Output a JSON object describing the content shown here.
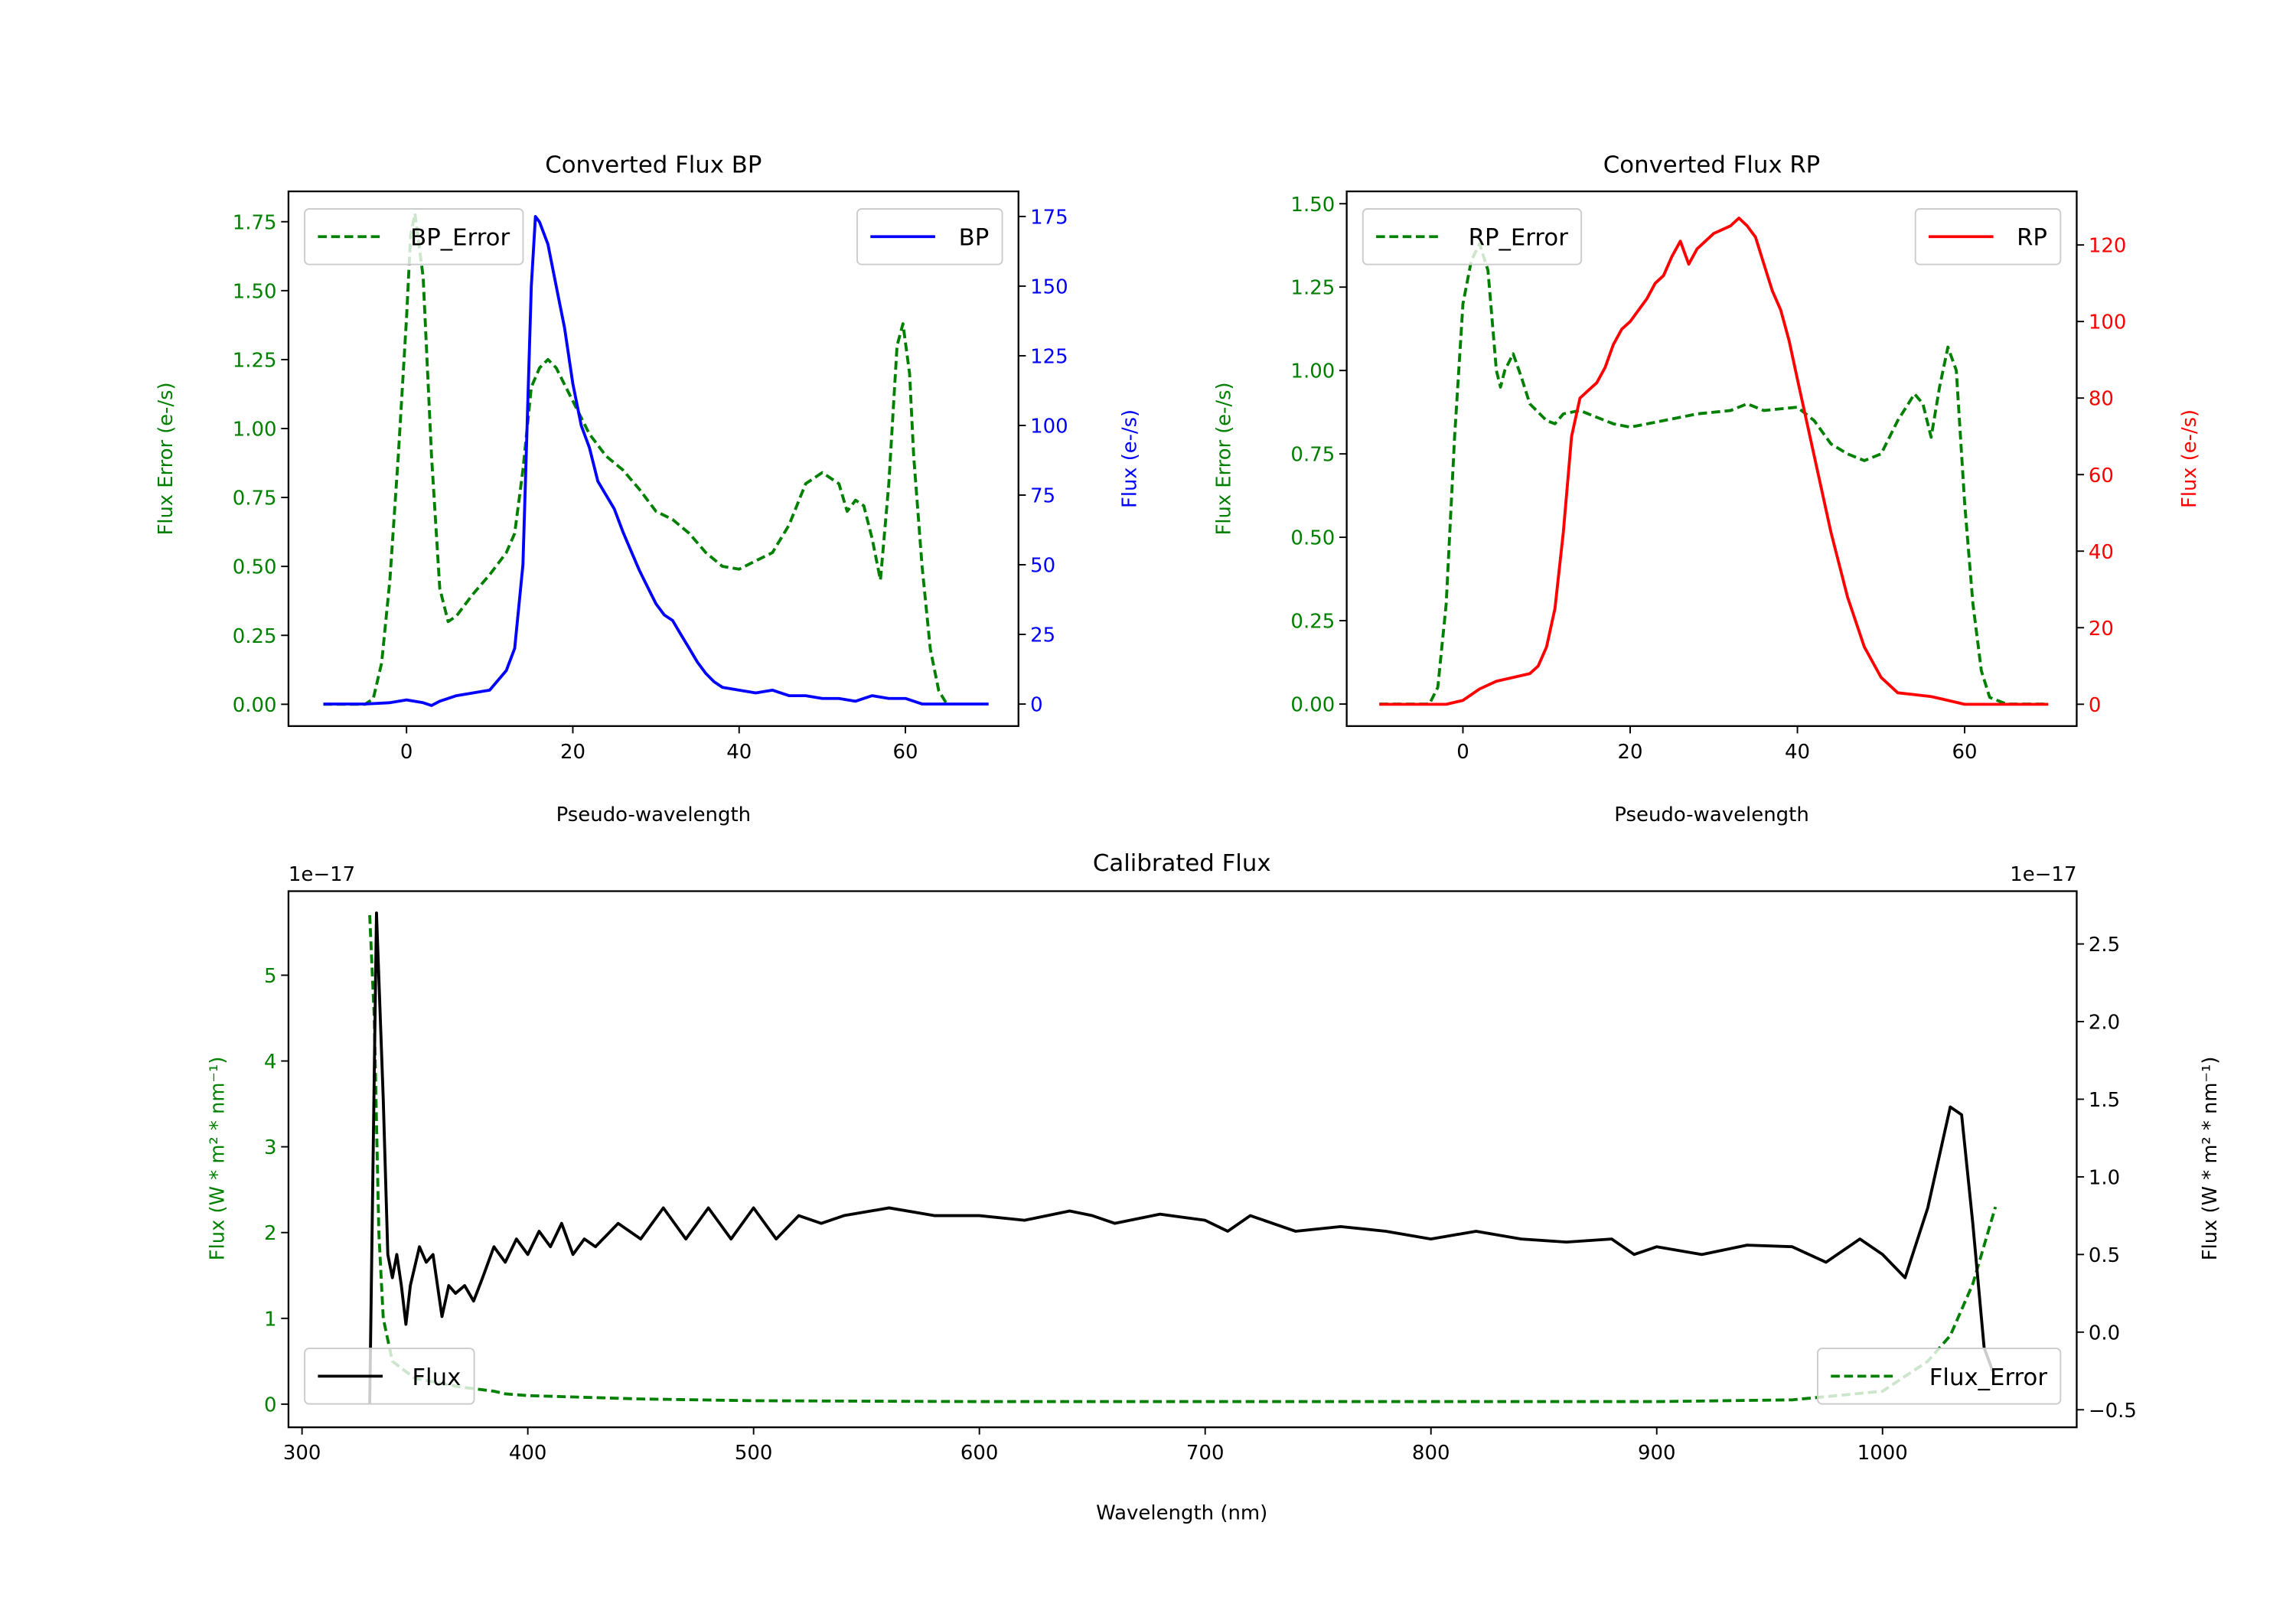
{
  "colors": {
    "error": "#008000",
    "bp": "#0000ff",
    "rp": "#ff0000",
    "flux": "#000000"
  },
  "chart_data": [
    {
      "type": "line",
      "id": "bp",
      "title": "Converted Flux BP",
      "xlabel": "Pseudo-wavelength",
      "ylabel_left": "Flux Error (e-/s)",
      "ylabel_right": "Flux (e-/s)",
      "xlim": [
        -14.2,
        73.6
      ],
      "ylim_left": [
        -0.079,
        1.86
      ],
      "ylim_right": [
        -7.9,
        184
      ],
      "xticks": [
        0,
        20,
        40,
        60
      ],
      "xtick_labels": [
        "0",
        "20",
        "40",
        "60"
      ],
      "yticks_left": [
        0,
        0.25,
        0.5,
        0.75,
        1,
        1.25,
        1.5,
        1.75
      ],
      "ytick_labels_left": [
        "0.00",
        "0.25",
        "0.50",
        "0.75",
        "1.00",
        "1.25",
        "1.50",
        "1.75"
      ],
      "yticks_right": [
        0,
        25,
        50,
        75,
        100,
        125,
        150,
        175
      ],
      "ytick_labels_right": [
        "0",
        "25",
        "50",
        "75",
        "100",
        "125",
        "150",
        "175"
      ],
      "legend_left": {
        "label": "BP_Error",
        "placement": "upper left"
      },
      "legend_right": {
        "label": "BP",
        "placement": "upper right"
      },
      "series": [
        {
          "name": "BP_Error",
          "axis": "left",
          "style": "dashed",
          "color": "#008000",
          "x": [
            -10,
            -5,
            -4,
            -3,
            -2,
            -1,
            0,
            0.5,
            1,
            2,
            3,
            4,
            5,
            6,
            8,
            10,
            12,
            13,
            14,
            15,
            16,
            17,
            18,
            20,
            22,
            24,
            26,
            28,
            30,
            32,
            34,
            36,
            38,
            40,
            42,
            44,
            46,
            48,
            50,
            52,
            53,
            54,
            55,
            56,
            57,
            58,
            59,
            59.7,
            60.5,
            61,
            62,
            63,
            64,
            65
          ],
          "y": [
            0,
            0,
            0.02,
            0.15,
            0.45,
            0.9,
            1.4,
            1.7,
            1.78,
            1.55,
            0.9,
            0.42,
            0.3,
            0.32,
            0.4,
            0.47,
            0.55,
            0.62,
            0.85,
            1.15,
            1.22,
            1.25,
            1.22,
            1.1,
            0.98,
            0.9,
            0.85,
            0.78,
            0.7,
            0.67,
            0.62,
            0.55,
            0.5,
            0.49,
            0.52,
            0.55,
            0.65,
            0.8,
            0.84,
            0.8,
            0.7,
            0.74,
            0.72,
            0.6,
            0.45,
            0.8,
            1.3,
            1.38,
            1.2,
            0.9,
            0.5,
            0.2,
            0.05,
            0
          ]
        },
        {
          "name": "BP",
          "axis": "right",
          "style": "solid",
          "color": "#0000ff",
          "x": [
            -10,
            -5,
            -2,
            0,
            2,
            3,
            4,
            5,
            6,
            8,
            10,
            12,
            13,
            14,
            15,
            15.5,
            16,
            17,
            18,
            19,
            20,
            21,
            22,
            23,
            24,
            25,
            26,
            27,
            28,
            29,
            30,
            31,
            32,
            33,
            34,
            35,
            36,
            37,
            38,
            40,
            42,
            44,
            46,
            48,
            50,
            52,
            54,
            56,
            58,
            60,
            62,
            65,
            70
          ],
          "y": [
            0,
            0,
            0.5,
            1.5,
            0.5,
            -0.5,
            1,
            2,
            3,
            4,
            5,
            12,
            20,
            50,
            150,
            175,
            173,
            165,
            150,
            135,
            115,
            100,
            92,
            80,
            75,
            70,
            62,
            55,
            48,
            42,
            36,
            32,
            30,
            25,
            20,
            15,
            11,
            8,
            6,
            5,
            4,
            5,
            3,
            3,
            2,
            2,
            1,
            3,
            2,
            2,
            0,
            0,
            0
          ]
        }
      ]
    },
    {
      "type": "line",
      "id": "rp",
      "title": "Converted Flux RP",
      "xlabel": "Pseudo-wavelength",
      "ylabel_left": "Flux Error (e-/s)",
      "ylabel_right": "Flux (e-/s)",
      "xlim": [
        -13.9,
        73.4
      ],
      "ylim_left": [
        -0.066,
        1.537
      ],
      "ylim_right": [
        -5.7,
        134
      ],
      "xticks": [
        0,
        20,
        40,
        60
      ],
      "xtick_labels": [
        "0",
        "20",
        "40",
        "60"
      ],
      "yticks_left": [
        0,
        0.25,
        0.5,
        0.75,
        1,
        1.25,
        1.5
      ],
      "ytick_labels_left": [
        "0.00",
        "0.25",
        "0.50",
        "0.75",
        "1.00",
        "1.25",
        "1.50"
      ],
      "yticks_right": [
        0,
        20,
        40,
        60,
        80,
        100,
        120
      ],
      "ytick_labels_right": [
        "0",
        "20",
        "40",
        "60",
        "80",
        "100",
        "120"
      ],
      "legend_left": {
        "label": "RP_Error",
        "placement": "upper left"
      },
      "legend_right": {
        "label": "RP",
        "placement": "upper right"
      },
      "series": [
        {
          "name": "RP_Error",
          "axis": "left",
          "style": "dashed",
          "color": "#008000",
          "x": [
            -10,
            -4,
            -3,
            -2,
            -1,
            0,
            1,
            2,
            3,
            4,
            4.5,
            5,
            6,
            7,
            8,
            10,
            11,
            12,
            14,
            16,
            18,
            20,
            24,
            28,
            32,
            34,
            36,
            40,
            42,
            44,
            46,
            48,
            50,
            52,
            54,
            55,
            56,
            57,
            58,
            59,
            60,
            61,
            62,
            63,
            65,
            70
          ],
          "y": [
            0,
            0,
            0.05,
            0.3,
            0.8,
            1.2,
            1.33,
            1.38,
            1.3,
            1.0,
            0.95,
            1.0,
            1.05,
            0.98,
            0.9,
            0.85,
            0.84,
            0.87,
            0.88,
            0.86,
            0.84,
            0.83,
            0.85,
            0.87,
            0.88,
            0.9,
            0.88,
            0.89,
            0.85,
            0.78,
            0.75,
            0.73,
            0.75,
            0.85,
            0.93,
            0.9,
            0.8,
            0.95,
            1.07,
            1.0,
            0.6,
            0.3,
            0.1,
            0.02,
            0,
            0
          ]
        },
        {
          "name": "RP",
          "axis": "right",
          "style": "solid",
          "color": "#ff0000",
          "x": [
            -10,
            -2,
            0,
            2,
            4,
            6,
            8,
            9,
            10,
            11,
            12,
            13,
            14,
            15,
            16,
            17,
            18,
            19,
            20,
            22,
            23,
            24,
            25,
            26,
            27,
            28,
            30,
            31,
            32,
            33,
            34,
            35,
            36,
            37,
            38,
            39,
            40,
            42,
            44,
            46,
            48,
            50,
            52,
            54,
            56,
            58,
            60,
            65,
            70
          ],
          "y": [
            0,
            0,
            1,
            4,
            6,
            7,
            8,
            10,
            15,
            25,
            45,
            70,
            80,
            82,
            84,
            88,
            94,
            98,
            100,
            106,
            110,
            112,
            117,
            121,
            115,
            119,
            123,
            124,
            125,
            127,
            125,
            122,
            115,
            108,
            103,
            95,
            85,
            65,
            45,
            28,
            15,
            7,
            3,
            2.5,
            2,
            1,
            0,
            0,
            0
          ]
        }
      ]
    },
    {
      "type": "line",
      "id": "cal",
      "title": "Calibrated Flux",
      "xlabel": "Wavelength (nm)",
      "ylabel_left": "Flux (W * m² * nm⁻¹)",
      "ylabel_right": "Flux (W * m² * nm⁻¹)",
      "offset_left": "1e−17",
      "offset_right": "1e−17",
      "xlim": [
        294,
        1086
      ],
      "ylim_left": [
        -0.27,
        5.98
      ],
      "ylim_right": [
        -0.613,
        2.84
      ],
      "xticks": [
        300,
        400,
        500,
        600,
        700,
        800,
        900,
        1000
      ],
      "xtick_labels": [
        "300",
        "400",
        "500",
        "600",
        "700",
        "800",
        "900",
        "1000"
      ],
      "yticks_left": [
        0,
        1,
        2,
        3,
        4,
        5
      ],
      "ytick_labels_left": [
        "0",
        "1",
        "2",
        "3",
        "4",
        "5"
      ],
      "yticks_right": [
        -0.5,
        0,
        0.5,
        1,
        1.5,
        2,
        2.5
      ],
      "ytick_labels_right": [
        "−0.5",
        "0.0",
        "0.5",
        "1.0",
        "1.5",
        "2.0",
        "2.5"
      ],
      "legend_left": {
        "label": "Flux",
        "placement": "lower left"
      },
      "legend_right": {
        "label": "Flux_Error",
        "placement": "lower right"
      },
      "series": [
        {
          "name": "Flux_Error",
          "axis": "left",
          "style": "dashed",
          "color": "#008000",
          "x": [
            330,
            332,
            334,
            336,
            340,
            350,
            370,
            385,
            390,
            400,
            450,
            500,
            600,
            640,
            700,
            800,
            900,
            960,
            1000,
            1020,
            1030,
            1040,
            1050
          ],
          "y": [
            5.7,
            4.5,
            2,
            1,
            0.5,
            0.3,
            0.2,
            0.15,
            0.12,
            0.1,
            0.06,
            0.04,
            0.03,
            0.03,
            0.03,
            0.03,
            0.03,
            0.05,
            0.15,
            0.5,
            0.8,
            1.4,
            2.3
          ]
        },
        {
          "name": "Flux",
          "axis": "right",
          "style": "solid",
          "color": "#000000",
          "x": [
            330,
            333,
            336,
            338,
            340,
            342,
            344,
            346,
            348,
            352,
            355,
            358,
            362,
            365,
            368,
            372,
            376,
            380,
            385,
            390,
            395,
            400,
            405,
            410,
            415,
            420,
            425,
            430,
            440,
            450,
            460,
            470,
            480,
            490,
            500,
            510,
            520,
            530,
            540,
            560,
            580,
            600,
            620,
            640,
            650,
            660,
            680,
            700,
            710,
            720,
            740,
            760,
            780,
            800,
            820,
            840,
            860,
            880,
            890,
            900,
            920,
            940,
            960,
            975,
            990,
            1000,
            1010,
            1020,
            1030,
            1035,
            1040,
            1045,
            1050
          ],
          "y": [
            -0.46,
            2.7,
            1.5,
            0.5,
            0.35,
            0.5,
            0.3,
            0.05,
            0.3,
            0.55,
            0.45,
            0.5,
            0.1,
            0.3,
            0.25,
            0.3,
            0.2,
            0.35,
            0.55,
            0.45,
            0.6,
            0.5,
            0.65,
            0.55,
            0.7,
            0.5,
            0.6,
            0.55,
            0.7,
            0.6,
            0.8,
            0.6,
            0.8,
            0.6,
            0.8,
            0.6,
            0.75,
            0.7,
            0.75,
            0.8,
            0.75,
            0.75,
            0.72,
            0.78,
            0.75,
            0.7,
            0.76,
            0.72,
            0.65,
            0.75,
            0.65,
            0.68,
            0.65,
            0.6,
            0.65,
            0.6,
            0.58,
            0.6,
            0.5,
            0.55,
            0.5,
            0.56,
            0.55,
            0.45,
            0.6,
            0.5,
            0.35,
            0.8,
            1.45,
            1.4,
            0.7,
            -0.1,
            -0.3
          ]
        }
      ]
    }
  ]
}
